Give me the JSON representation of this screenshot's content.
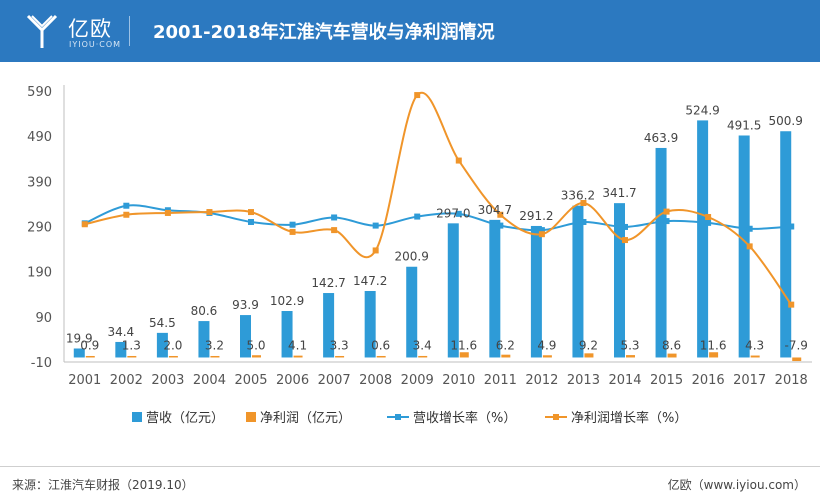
{
  "header": {
    "logo_text": "亿欧",
    "logo_sub": "IYIOU·COM",
    "title": "2001-2018年江淮汽车营收与净利润情况"
  },
  "footer": {
    "source": "来源：江淮汽车财报（2019.10）",
    "brand": "亿欧（www.iyiou.com）"
  },
  "colors": {
    "header_bg": "#2c79c0",
    "bar_revenue": "#2e9bd7",
    "bar_profit": "#f0952a",
    "line_revenue_growth": "#2e9bd7",
    "line_profit_growth": "#f0952a"
  },
  "chart_data": {
    "type": "bar",
    "categories": [
      "2001",
      "2002",
      "2003",
      "2004",
      "2005",
      "2006",
      "2007",
      "2008",
      "2009",
      "2010",
      "2011",
      "2012",
      "2013",
      "2014",
      "2015",
      "2016",
      "2017",
      "2018"
    ],
    "yticks": [
      "590",
      "490",
      "390",
      "290",
      "190",
      "90",
      "-10"
    ],
    "ylim": [
      -10,
      590
    ],
    "series": [
      {
        "name": "营收（亿元）",
        "kind": "bar",
        "values": [
          19.9,
          34.4,
          54.5,
          80.6,
          93.9,
          102.9,
          142.7,
          147.2,
          200.9,
          297.0,
          304.7,
          291.2,
          336.2,
          341.7,
          463.9,
          524.9,
          491.5,
          500.9
        ],
        "labels": [
          "19.9",
          "34.4",
          "54.5",
          "80.6",
          "93.9",
          "102.9",
          "142.7",
          "147.2",
          "200.9",
          "297.0",
          "304.7",
          "291.2",
          "336.2",
          "341.7",
          "463.9",
          "524.9",
          "491.5",
          "500.9"
        ]
      },
      {
        "name": "净利润（亿元）",
        "kind": "bar",
        "values": [
          0.9,
          1.3,
          2.0,
          3.2,
          5.0,
          4.1,
          3.3,
          0.6,
          3.4,
          11.6,
          6.2,
          4.9,
          9.2,
          5.3,
          8.6,
          11.6,
          4.3,
          -7.9
        ],
        "labels": [
          "0.9",
          "1.3",
          "2.0",
          "3.2",
          "5.0",
          "4.1",
          "3.3",
          "0.6",
          "3.4",
          "11.6",
          "6.2",
          "4.9",
          "9.2",
          "5.3",
          "8.6",
          "11.6",
          "4.3",
          "-7.9"
        ]
      },
      {
        "name": "营收增长率（%）",
        "kind": "line",
        "values": [
          297,
          336,
          326,
          320,
          300,
          294,
          310,
          292,
          312,
          318,
          292,
          282,
          300,
          289,
          302,
          298,
          285,
          290
        ]
      },
      {
        "name": "净利润增长率（%）",
        "kind": "line",
        "values": [
          295,
          316,
          320,
          322,
          322,
          278,
          282,
          237,
          581,
          436,
          316,
          273,
          342,
          260,
          323,
          311,
          246,
          117
        ]
      }
    ],
    "legend_position": "bottom"
  }
}
